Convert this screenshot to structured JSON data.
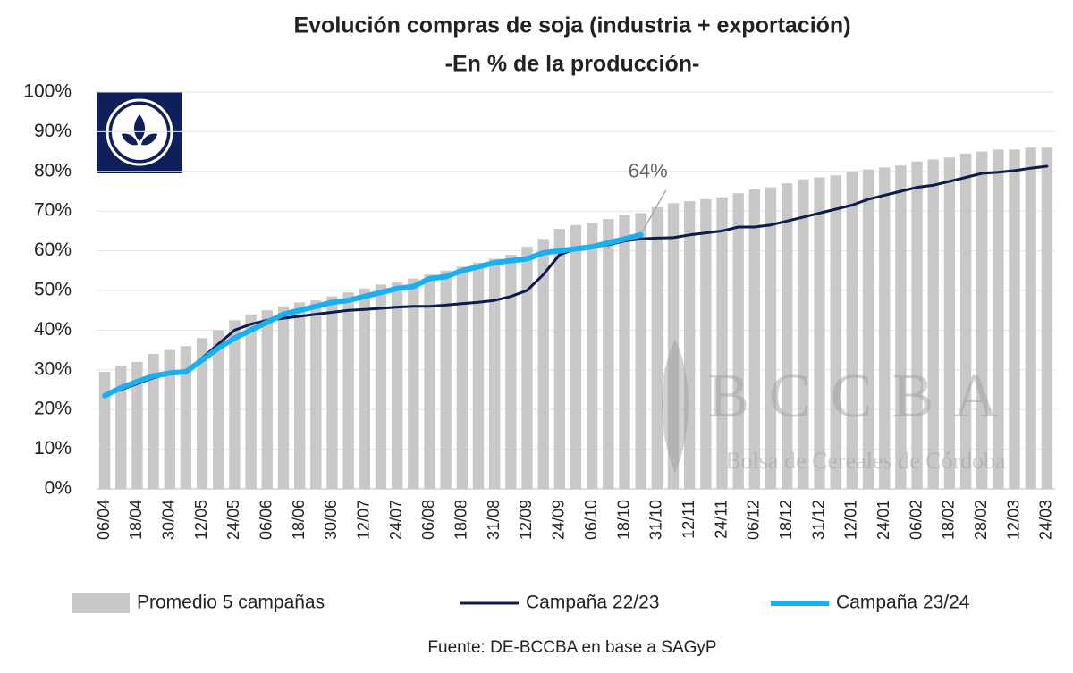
{
  "chart_data": {
    "type": "bar_line",
    "title": "Evolución compras de soja (industria + exportación)",
    "subtitle": "-En % de la producción-",
    "categories": [
      "06/04",
      null,
      "18/04",
      null,
      "30/04",
      null,
      "12/05",
      null,
      "24/05",
      null,
      "06/06",
      null,
      "18/06",
      null,
      "30/06",
      null,
      "12/07",
      null,
      "24/07",
      null,
      "06/08",
      null,
      "18/08",
      null,
      "31/08",
      null,
      "12/09",
      null,
      "24/09",
      null,
      "06/10",
      null,
      "18/10",
      null,
      "31/10",
      null,
      "12/11",
      null,
      "24/11",
      null,
      "06/12",
      null,
      "18/12",
      null,
      "31/12",
      null,
      "12/01",
      null,
      "24/01",
      null,
      "06/02",
      null,
      "18/02",
      null,
      "28/02",
      null,
      "12/03",
      null,
      "24/03"
    ],
    "series": [
      {
        "name": "Promedio 5 campañas",
        "kind": "bar",
        "color": "#c8c8c8",
        "values": [
          29.5,
          31,
          32,
          34,
          35,
          36,
          38,
          40,
          42.5,
          44,
          45,
          46,
          47,
          47.5,
          48.5,
          49.5,
          50.5,
          51.5,
          52,
          53,
          54,
          55,
          56,
          57,
          58,
          59,
          61,
          63,
          65.5,
          66.5,
          67,
          68,
          69,
          69.5,
          71,
          72,
          72.5,
          73,
          73.5,
          74.5,
          75.5,
          76,
          77,
          78,
          78.5,
          79,
          80,
          80.5,
          81,
          81.5,
          82.5,
          83,
          83.5,
          84.5,
          85,
          85.5,
          85.5,
          86,
          86
        ]
      },
      {
        "name": "Campaña 22/23",
        "kind": "line",
        "color": "#0d1b4f",
        "values": [
          23.5,
          25,
          26.5,
          28,
          29,
          29.5,
          33,
          36.5,
          40,
          41.5,
          42.5,
          43,
          43.5,
          44,
          44.5,
          45,
          45.2,
          45.5,
          45.8,
          46,
          46,
          46.3,
          46.7,
          47,
          47.5,
          48.5,
          50,
          54,
          59,
          60.5,
          61,
          61.5,
          62.5,
          63,
          63.2,
          63.3,
          64,
          64.5,
          65,
          66,
          66,
          66.5,
          67.5,
          68.5,
          69.5,
          70.5,
          71.5,
          73,
          74,
          75,
          76,
          76.5,
          77.5,
          78.5,
          79.5,
          79.8,
          80.2,
          80.8,
          81.3
        ]
      },
      {
        "name": "Campaña 23/24",
        "kind": "line",
        "color": "#1ab0ef",
        "values": [
          23.5,
          25.5,
          27,
          28.5,
          29.2,
          29.5,
          32.5,
          35.5,
          38,
          40,
          42,
          44,
          45,
          46,
          47,
          47.5,
          48.5,
          49.5,
          50.5,
          51,
          53,
          53.5,
          55,
          56,
          57,
          57.5,
          58,
          59.5,
          60,
          60.5,
          61,
          62,
          63,
          64,
          null,
          null,
          null,
          null,
          null,
          null,
          null,
          null,
          null,
          null,
          null,
          null,
          null,
          null,
          null,
          null,
          null,
          null,
          null,
          null,
          null,
          null,
          null,
          null,
          null
        ],
        "value_labels": [
          null,
          null,
          null,
          null,
          null,
          null,
          null,
          null,
          null,
          null,
          null,
          null,
          null,
          null,
          null,
          null,
          null,
          null,
          null,
          null,
          null,
          null,
          null,
          null,
          null,
          null,
          null,
          null,
          null,
          null,
          null,
          null,
          null,
          "64%",
          null,
          null,
          null,
          null,
          null,
          null,
          null,
          null,
          null,
          null,
          null,
          null,
          null,
          null,
          null,
          null,
          null,
          null,
          null,
          null,
          null,
          null,
          null,
          null,
          null
        ]
      }
    ],
    "ylim": [
      0,
      100
    ],
    "yticks": [
      {
        "value": 0,
        "label": "0%"
      },
      {
        "value": 10,
        "label": "10%"
      },
      {
        "value": 20,
        "label": "20%"
      },
      {
        "value": 30,
        "label": "30%"
      },
      {
        "value": 40,
        "label": "40%"
      },
      {
        "value": 50,
        "label": "50%"
      },
      {
        "value": 60,
        "label": "60%"
      },
      {
        "value": 70,
        "label": "70%"
      },
      {
        "value": 80,
        "label": "80%"
      },
      {
        "value": 90,
        "label": "90%"
      },
      {
        "value": 100,
        "label": "100%"
      }
    ],
    "grid": true,
    "legend": "bottom",
    "watermark": {
      "title": "BCCBA",
      "subtitle": "Bolsa de Cereales de Córdoba"
    },
    "source": "Fuente: DE-BCCBA en base a SAGyP"
  }
}
